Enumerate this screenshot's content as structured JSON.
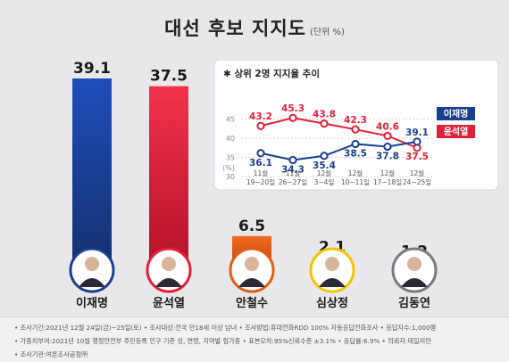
{
  "header": {
    "title": "대선 후보 지지도",
    "unit": "(단위 %)"
  },
  "colors": {
    "red": "#e2203a",
    "blue": "#1b3f8f",
    "orange": "#e25d12",
    "yellow": "#f5c400",
    "gray": "#7a7a7a"
  },
  "chart_data": [
    {
      "type": "bar",
      "categories": [
        "이재명",
        "윤석열",
        "안철수",
        "심상정",
        "김동연"
      ],
      "values": [
        39.1,
        37.5,
        6.5,
        2.1,
        1.2
      ],
      "value_labels": [
        "39.1",
        "37.5",
        "6.5",
        "2.1",
        "1.2"
      ],
      "bar_colors": [
        "#1b3f8f",
        "#e2203a",
        "#e25d12",
        "#f5c400",
        "#7a7a7a"
      ],
      "ylim": [
        0,
        40
      ]
    },
    {
      "type": "line",
      "title": "상위 2명 지지율 추이",
      "x_month": [
        "11월",
        "11월",
        "12월",
        "12월",
        "12월",
        "12월"
      ],
      "x_days": [
        "19~20일",
        "26~27일",
        "3~4일",
        "10~11일",
        "17~18일",
        "24~25일"
      ],
      "ylabel": "(%)",
      "yticks": [
        "45",
        "40",
        "35",
        "30"
      ],
      "ylim": [
        30,
        45
      ],
      "series": [
        {
          "name": "윤석열",
          "values": [
            43.2,
            45.3,
            43.8,
            42.3,
            40.6,
            37.5
          ],
          "labels": [
            "43.2",
            "45.3",
            "43.8",
            "42.3",
            "40.6",
            "37.5"
          ],
          "color": "#e2203a"
        },
        {
          "name": "이재명",
          "values": [
            36.1,
            34.3,
            35.4,
            38.5,
            37.8,
            39.1
          ],
          "labels": [
            "36.1",
            "34.3",
            "35.4",
            "38.5",
            "37.8",
            "39.1"
          ],
          "color": "#1b3f8f"
        }
      ]
    }
  ],
  "footer": {
    "line1": "• 조사기간:2021년 12월 24일(금)~25일(토)  • 조사대상:전국 만18세 이상 남녀  • 조사방법:휴대전화RDD 100% 자동응답전화조사  • 응답자수:1,000명",
    "line2": "• 가중치부여:2021년 10월 행정안전부 주민등록 인구 기준 성, 연령, 지역별 림가중  • 표본오차:95%신뢰수준 ±3.1%  • 응답률:6.9%  • 의뢰자:데일리안",
    "line3": "• 조사기관:여론조사공정㈜"
  }
}
